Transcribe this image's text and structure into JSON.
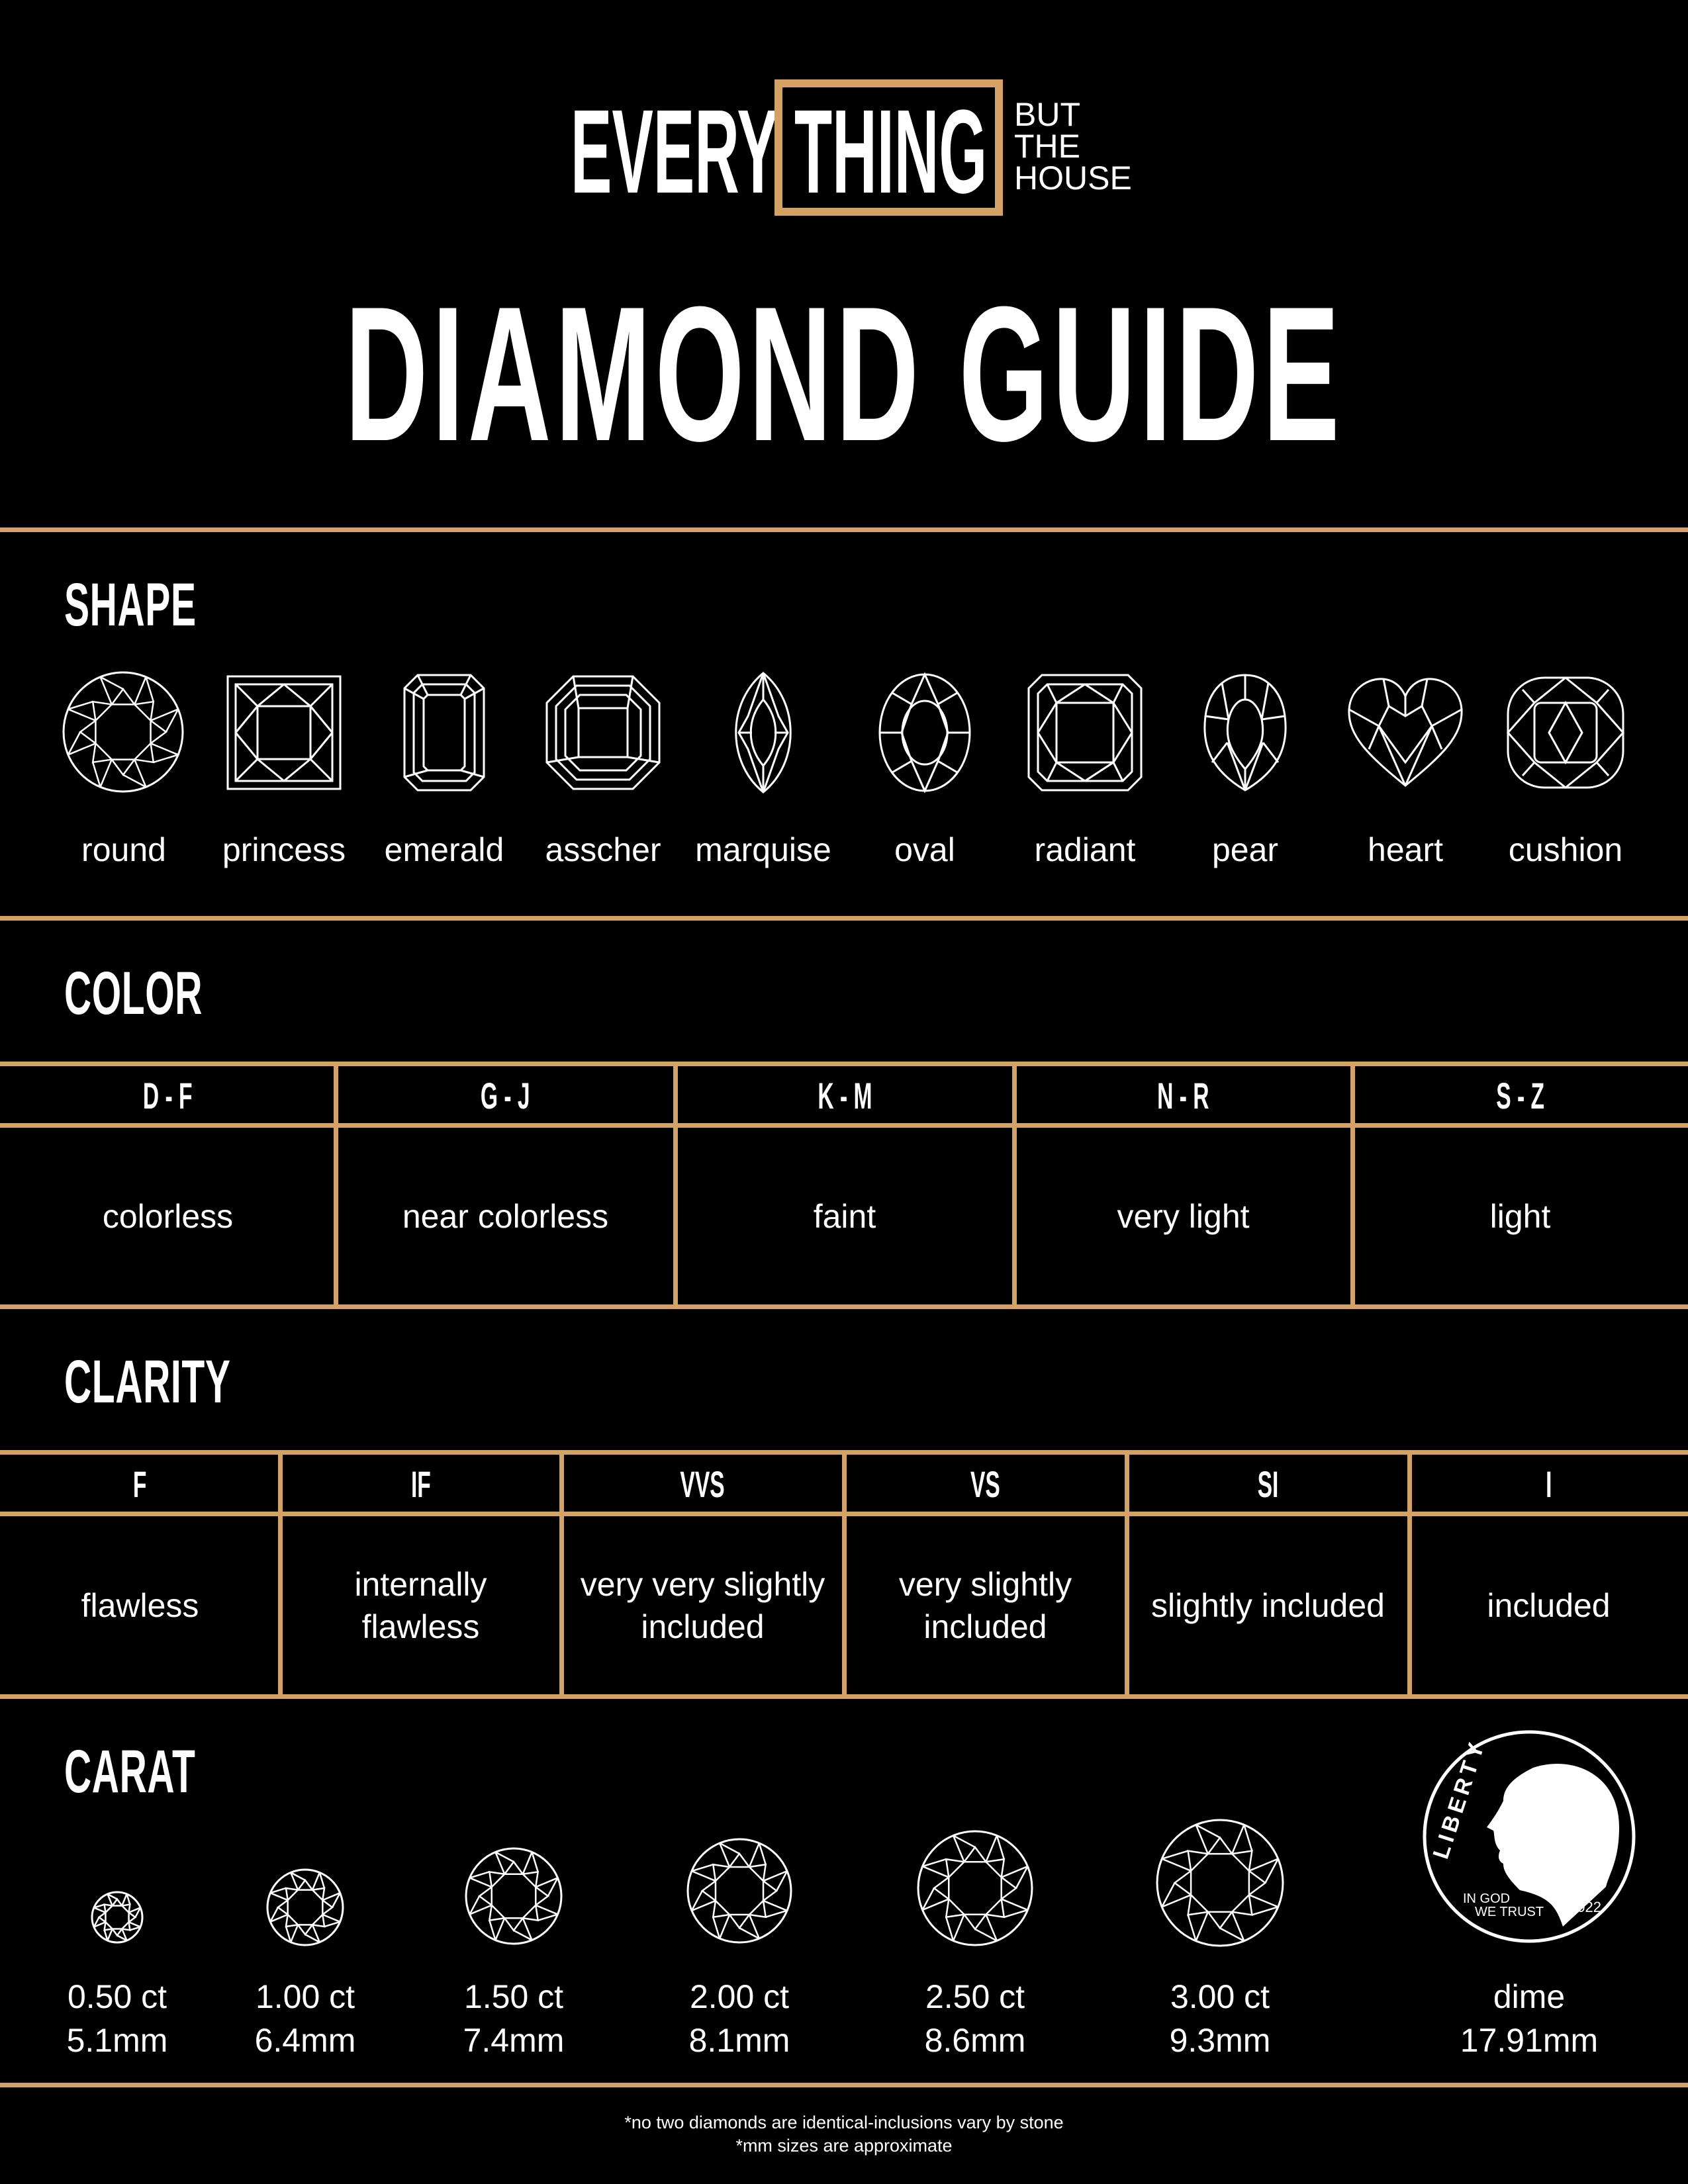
{
  "brand": {
    "every": "EVERY",
    "thing": "THING",
    "but": "BUT",
    "the": "THE",
    "house": "HOUSE"
  },
  "title": "DIAMOND GUIDE",
  "colors": {
    "accent": "#d4a262",
    "background": "#000000",
    "text": "#ffffff"
  },
  "shape": {
    "label": "SHAPE",
    "items": [
      {
        "label": "round",
        "icon": "round-diamond-icon"
      },
      {
        "label": "princess",
        "icon": "princess-diamond-icon"
      },
      {
        "label": "emerald",
        "icon": "emerald-diamond-icon"
      },
      {
        "label": "asscher",
        "icon": "asscher-diamond-icon"
      },
      {
        "label": "marquise",
        "icon": "marquise-diamond-icon"
      },
      {
        "label": "oval",
        "icon": "oval-diamond-icon"
      },
      {
        "label": "radiant",
        "icon": "radiant-diamond-icon"
      },
      {
        "label": "pear",
        "icon": "pear-diamond-icon"
      },
      {
        "label": "heart",
        "icon": "heart-diamond-icon"
      },
      {
        "label": "cushion",
        "icon": "cushion-diamond-icon"
      }
    ]
  },
  "color": {
    "label": "COLOR",
    "grades": [
      {
        "grade": "D - F",
        "desc": "colorless"
      },
      {
        "grade": "G - J",
        "desc": "near colorless"
      },
      {
        "grade": "K - M",
        "desc": "faint"
      },
      {
        "grade": "N - R",
        "desc": "very light"
      },
      {
        "grade": "S - Z",
        "desc": "light"
      }
    ]
  },
  "clarity": {
    "label": "CLARITY",
    "grades": [
      {
        "grade": "F",
        "desc": "flawless"
      },
      {
        "grade": "IF",
        "desc": "internally flawless"
      },
      {
        "grade": "VVS",
        "desc": "very very slightly included"
      },
      {
        "grade": "VS",
        "desc": "very slightly included"
      },
      {
        "grade": "SI",
        "desc": "slightly included"
      },
      {
        "grade": "I",
        "desc": "included"
      }
    ]
  },
  "carat": {
    "label": "CARAT",
    "items": [
      {
        "weight": "0.50 ct",
        "size": "5.1mm"
      },
      {
        "weight": "1.00 ct",
        "size": "6.4mm"
      },
      {
        "weight": "1.50 ct",
        "size": "7.4mm"
      },
      {
        "weight": "2.00 ct",
        "size": "8.1mm"
      },
      {
        "weight": "2.50 ct",
        "size": "8.6mm"
      },
      {
        "weight": "3.00 ct",
        "size": "9.3mm"
      }
    ],
    "dime": {
      "label": "dime",
      "size": "17.91mm",
      "coin_text": {
        "liberty": "LIBERTY",
        "motto_1": "IN GOD",
        "motto_2": "WE TRUST",
        "year": "2022"
      }
    }
  },
  "footer": {
    "line1": "*no two diamonds are identical-inclusions vary by stone",
    "line2": "*mm sizes are approximate"
  }
}
